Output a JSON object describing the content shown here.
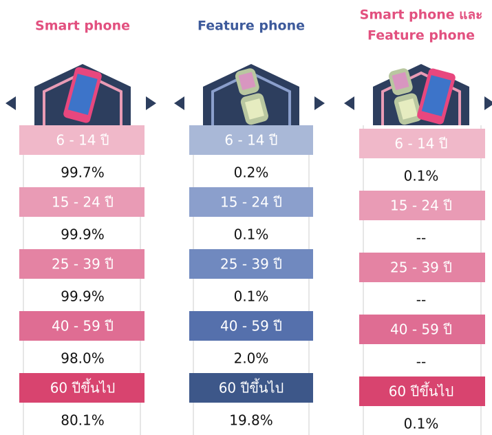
{
  "columns": [
    {
      "title_lines": [
        "Smart phone"
      ],
      "rows": [
        {
          "age": "6 - 14 ปี",
          "value": "99.7%"
        },
        {
          "age": "15 - 24 ปี",
          "value": "99.9%"
        },
        {
          "age": "25 - 39 ปี",
          "value": "99.9%"
        },
        {
          "age": "40 - 59 ปี",
          "value": "98.0%"
        },
        {
          "age": "60 ปีขึ้นไป",
          "value": "80.1%"
        }
      ]
    },
    {
      "title_lines": [
        "Feature phone"
      ],
      "rows": [
        {
          "age": "6 - 14 ปี",
          "value": "0.2%"
        },
        {
          "age": "15 - 24 ปี",
          "value": "0.1%"
        },
        {
          "age": "25 - 39 ปี",
          "value": "0.1%"
        },
        {
          "age": "40 - 59 ปี",
          "value": "2.0%"
        },
        {
          "age": "60 ปีขึ้นไป",
          "value": "19.8%"
        }
      ]
    },
    {
      "title_lines": [
        "Smart phone และ",
        "Feature phone"
      ],
      "rows": [
        {
          "age": "6 - 14 ปี",
          "value": "0.1%"
        },
        {
          "age": "15 - 24 ปี",
          "value": "--"
        },
        {
          "age": "25 - 39 ปี",
          "value": "--"
        },
        {
          "age": "40 - 59 ปี",
          "value": "--"
        },
        {
          "age": "60 ปีขึ้นไป",
          "value": "0.1%"
        }
      ]
    }
  ]
}
